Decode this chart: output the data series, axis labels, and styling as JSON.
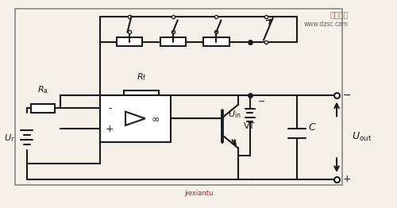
{
  "bg_color": "#f5f0e8",
  "line_color": "#1a1a1a",
  "line_width": 1.5,
  "title": "",
  "fig_width": 5.0,
  "fig_height": 2.62,
  "dpi": 100,
  "watermark_text1": "维库一卡",
  "watermark_text2": "www.dzsc.com",
  "bottom_text1": "jiexiantu",
  "bottom_color": "#cc0000",
  "label_Ra": "R_a",
  "label_Ur": "U_r",
  "label_Rf": "R_f",
  "label_Uin": "U_{in}",
  "label_C": "C",
  "label_Uout": "U_{out}",
  "label_VT": "VT",
  "label_opamp_minus": "-",
  "label_opamp_plus": "+"
}
